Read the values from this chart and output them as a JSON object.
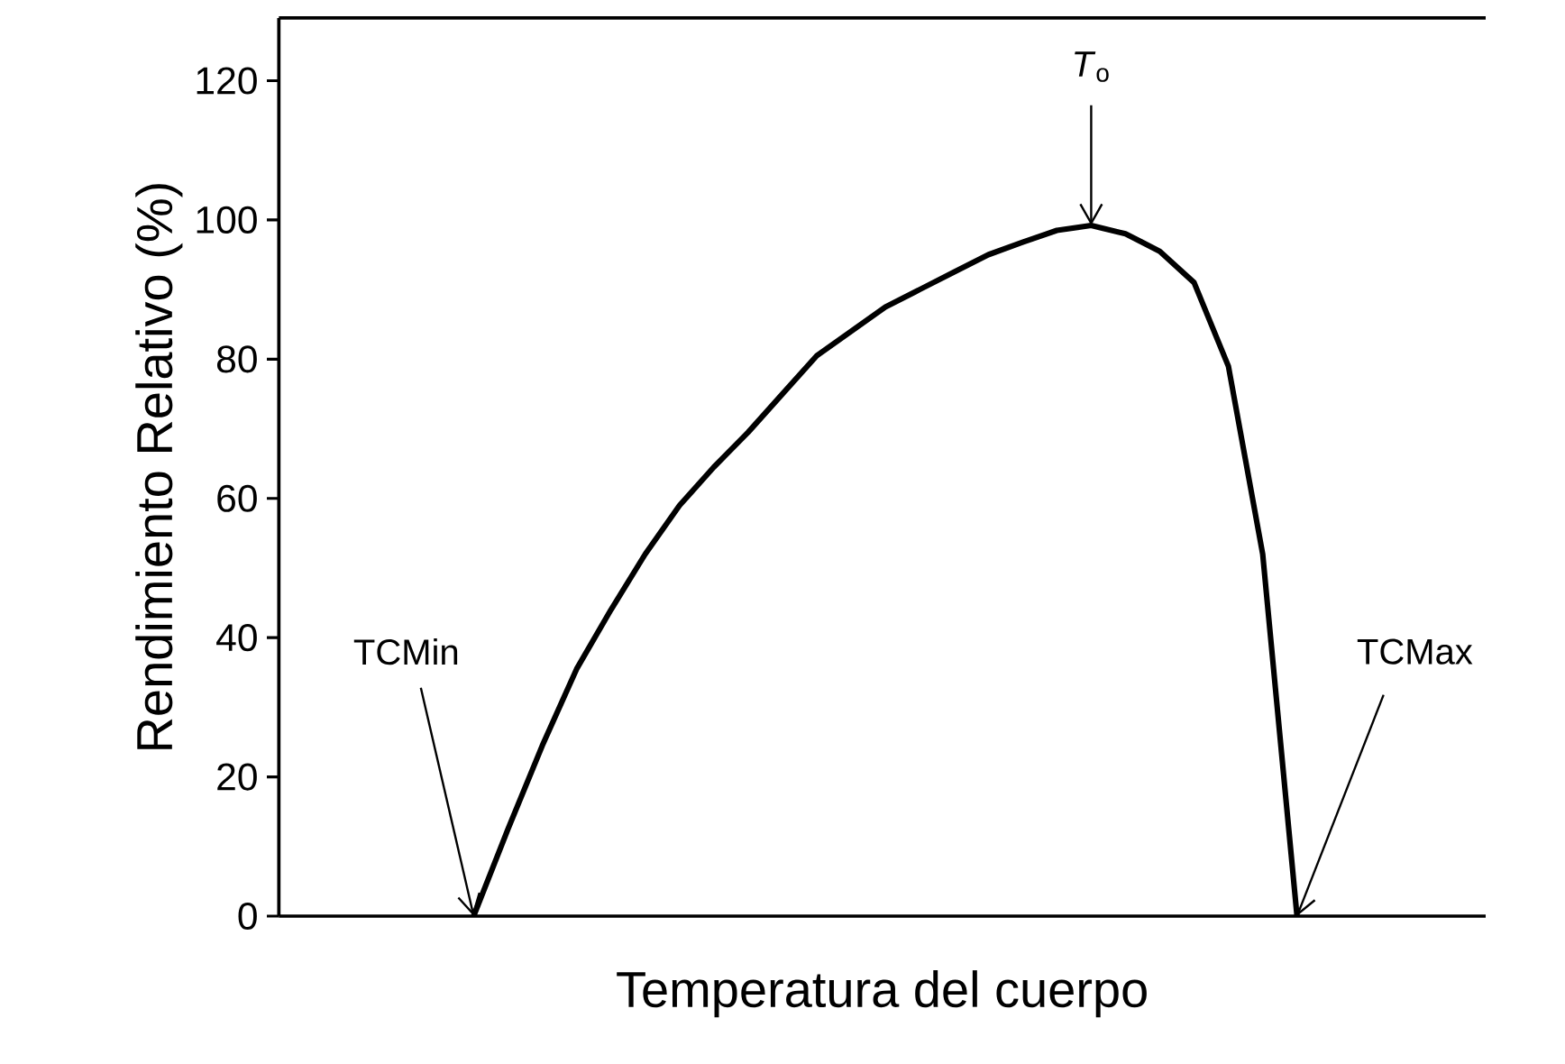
{
  "chart_data": {
    "type": "line",
    "xlabel": "Temperatura del cuerpo",
    "ylabel": "Rendimiento Relativo (%)",
    "categories": [
      null,
      null,
      null,
      null,
      null,
      null,
      null,
      null,
      null,
      null,
      null,
      null,
      null,
      null,
      null,
      null,
      null,
      null,
      null,
      null,
      null,
      null,
      null,
      null,
      null
    ],
    "color": "#000000",
    "values": [
      0,
      12.5,
      24.5,
      35.5,
      44,
      52,
      59,
      64.5,
      69.5,
      75,
      80.5,
      84,
      87.5,
      90,
      92.5,
      95,
      96.8,
      98.5,
      99.2,
      98,
      95.5,
      91,
      79,
      52,
      0
    ],
    "ylim": [
      0,
      129
    ],
    "yticks": [
      0,
      20,
      40,
      60,
      80,
      100,
      120
    ],
    "annotations": [
      "TCMin",
      {
        "text": "*T*$_{o}$",
        "y": 99.2
      },
      "TCMax"
    ]
  }
}
